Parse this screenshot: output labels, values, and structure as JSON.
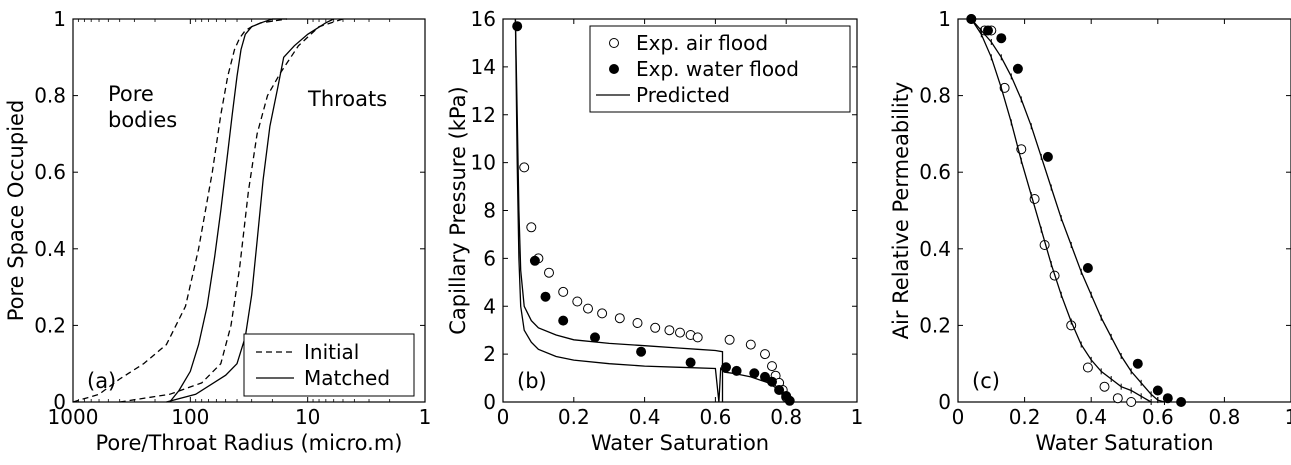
{
  "chart_data": [
    {
      "type": "line",
      "panel_label": "(a)",
      "xlabel": "Pore/Throat Radius (micro.m)",
      "ylabel": "Pore Space Occupied",
      "x_scale": "log",
      "x_reversed": true,
      "xlim": [
        1000,
        1
      ],
      "ylim": [
        0,
        1
      ],
      "xticks": [
        1000,
        100,
        10,
        1
      ],
      "xtick_labels": [
        "1000",
        "100",
        "10",
        "1"
      ],
      "yticks": [
        0,
        0.2,
        0.4,
        0.6,
        0.8,
        1
      ],
      "ytick_labels": [
        "0",
        "0.2",
        "0.4",
        "0.6",
        "0.8",
        "1"
      ],
      "annotations": [
        "Pore",
        "bodies",
        "Throats"
      ],
      "legend": {
        "position": "bottom-right",
        "entries": [
          "Initial",
          "Matched"
        ]
      },
      "grid": false,
      "series": [
        {
          "name": "Initial",
          "style": "dashed",
          "group": "Pore bodies",
          "x": [
            1000,
            600,
            400,
            250,
            160,
            110,
            85,
            65,
            55,
            48,
            42,
            38,
            34,
            30,
            25,
            15
          ],
          "y": [
            0,
            0.02,
            0.06,
            0.1,
            0.15,
            0.25,
            0.4,
            0.6,
            0.75,
            0.85,
            0.92,
            0.95,
            0.97,
            0.98,
            0.99,
            1
          ]
        },
        {
          "name": "Initial",
          "style": "dashed",
          "group": "Throats",
          "x": [
            400,
            150,
            80,
            55,
            45,
            38,
            32,
            27,
            22,
            17,
            12,
            8,
            5
          ],
          "y": [
            0,
            0.02,
            0.05,
            0.1,
            0.2,
            0.35,
            0.55,
            0.7,
            0.8,
            0.86,
            0.93,
            0.98,
            1
          ]
        },
        {
          "name": "Matched",
          "style": "solid",
          "group": "Pore bodies",
          "x": [
            150,
            125,
            100,
            85,
            72,
            62,
            55,
            48,
            44,
            40,
            37,
            34,
            30,
            25,
            20,
            15
          ],
          "y": [
            0,
            0.03,
            0.08,
            0.15,
            0.25,
            0.38,
            0.5,
            0.65,
            0.75,
            0.85,
            0.92,
            0.96,
            0.98,
            0.99,
            1,
            1
          ]
        },
        {
          "name": "Matched",
          "style": "solid",
          "group": "Throats",
          "x": [
            160,
            90,
            50,
            40,
            34,
            30,
            27,
            24,
            21,
            18,
            16,
            13,
            10,
            7,
            6
          ],
          "y": [
            0,
            0.02,
            0.07,
            0.1,
            0.17,
            0.28,
            0.42,
            0.58,
            0.72,
            0.82,
            0.9,
            0.93,
            0.96,
            0.99,
            1
          ]
        }
      ]
    },
    {
      "type": "line",
      "panel_label": "(b)",
      "xlabel": "Water Saturation",
      "ylabel": "Capillary Pressure (kPa)",
      "xlim": [
        0,
        1
      ],
      "ylim": [
        0,
        16
      ],
      "xticks": [
        0,
        0.2,
        0.4,
        0.6,
        0.8,
        1
      ],
      "xtick_labels": [
        "0",
        "0.2",
        "0.4",
        "0.6",
        "0.8",
        "1"
      ],
      "yticks": [
        0,
        2,
        4,
        6,
        8,
        10,
        12,
        14,
        16
      ],
      "ytick_labels": [
        "0",
        "2",
        "4",
        "6",
        "8",
        "10",
        "12",
        "14",
        "16"
      ],
      "legend": {
        "position": "top-right",
        "entries": [
          "Exp. air flood",
          "Exp. water flood",
          "Predicted"
        ]
      },
      "grid": false,
      "series": [
        {
          "name": "Exp. air flood",
          "marker": "open-circle",
          "x": [
            0.06,
            0.08,
            0.1,
            0.13,
            0.17,
            0.21,
            0.24,
            0.28,
            0.33,
            0.38,
            0.43,
            0.47,
            0.5,
            0.53,
            0.55,
            0.64,
            0.7,
            0.74,
            0.76,
            0.77,
            0.78,
            0.79,
            0.8
          ],
          "y": [
            9.8,
            7.3,
            6.0,
            5.4,
            4.6,
            4.2,
            3.9,
            3.7,
            3.5,
            3.3,
            3.1,
            3.0,
            2.9,
            2.8,
            2.7,
            2.6,
            2.4,
            2.0,
            1.5,
            1.1,
            0.8,
            0.5,
            0.2
          ]
        },
        {
          "name": "Exp. water flood",
          "marker": "filled-circle",
          "x": [
            0.04,
            0.09,
            0.12,
            0.17,
            0.26,
            0.39,
            0.53,
            0.63,
            0.66,
            0.71,
            0.74,
            0.76,
            0.78,
            0.8,
            0.81
          ],
          "y": [
            15.7,
            5.9,
            4.4,
            3.4,
            2.7,
            2.1,
            1.65,
            1.45,
            1.3,
            1.2,
            1.05,
            0.85,
            0.5,
            0.25,
            0.05
          ]
        },
        {
          "name": "Predicted",
          "style": "solid",
          "branch": "upper",
          "x": [
            0.035,
            0.04,
            0.045,
            0.05,
            0.06,
            0.08,
            0.1,
            0.15,
            0.2,
            0.3,
            0.4,
            0.5,
            0.55,
            0.6,
            0.62,
            0.62
          ],
          "y": [
            16,
            12,
            8,
            5.5,
            4.0,
            3.4,
            3.1,
            2.8,
            2.6,
            2.45,
            2.35,
            2.25,
            2.2,
            2.15,
            2.1,
            0
          ]
        },
        {
          "name": "Predicted",
          "style": "solid",
          "branch": "lower",
          "x": [
            0.035,
            0.04,
            0.045,
            0.05,
            0.06,
            0.08,
            0.1,
            0.15,
            0.2,
            0.3,
            0.4,
            0.5,
            0.6,
            0.61,
            0.615,
            0.625,
            0.65,
            0.7,
            0.75,
            0.78,
            0.8,
            0.81
          ],
          "y": [
            16,
            10,
            6,
            4.0,
            3.0,
            2.5,
            2.2,
            1.9,
            1.75,
            1.6,
            1.5,
            1.45,
            1.4,
            0,
            1.4,
            1.25,
            1.2,
            1.05,
            0.8,
            0.5,
            0.2,
            0
          ]
        }
      ]
    },
    {
      "type": "line",
      "panel_label": "(c)",
      "xlabel": "Water Saturation",
      "ylabel": "Air Relative Permeability",
      "xlim": [
        0,
        1
      ],
      "ylim": [
        0,
        1
      ],
      "xticks": [
        0,
        0.2,
        0.4,
        0.6,
        0.8,
        1
      ],
      "xtick_labels": [
        "0",
        "0.2",
        "0.4",
        "0.6",
        "0.8",
        "1"
      ],
      "yticks": [
        0,
        0.2,
        0.4,
        0.6,
        0.8,
        1
      ],
      "ytick_labels": [
        "0",
        "0.2",
        "0.4",
        "0.6",
        "0.8",
        "1"
      ],
      "grid": false,
      "series": [
        {
          "name": "Exp. air flood",
          "marker": "open-circle",
          "x": [
            0.04,
            0.08,
            0.1,
            0.14,
            0.19,
            0.23,
            0.26,
            0.29,
            0.34,
            0.39,
            0.44,
            0.48,
            0.52
          ],
          "y": [
            1.0,
            0.97,
            0.97,
            0.82,
            0.66,
            0.53,
            0.41,
            0.33,
            0.2,
            0.09,
            0.04,
            0.01,
            0.0
          ]
        },
        {
          "name": "Exp. water flood",
          "marker": "filled-circle",
          "x": [
            0.04,
            0.09,
            0.13,
            0.18,
            0.27,
            0.39,
            0.54,
            0.6,
            0.63,
            0.67
          ],
          "y": [
            1.0,
            0.97,
            0.95,
            0.87,
            0.64,
            0.35,
            0.1,
            0.03,
            0.01,
            0.0
          ]
        },
        {
          "name": "Predicted",
          "style": "solid",
          "error_bars": true,
          "branch": "inner",
          "x": [
            0.04,
            0.07,
            0.1,
            0.13,
            0.16,
            0.19,
            0.22,
            0.25,
            0.28,
            0.31,
            0.34,
            0.37,
            0.4,
            0.43,
            0.46,
            0.49,
            0.52,
            0.55,
            0.58
          ],
          "y": [
            1.0,
            0.96,
            0.9,
            0.82,
            0.73,
            0.63,
            0.54,
            0.45,
            0.36,
            0.28,
            0.21,
            0.15,
            0.11,
            0.08,
            0.06,
            0.04,
            0.03,
            0.015,
            0.0
          ]
        },
        {
          "name": "Predicted",
          "style": "solid",
          "error_bars": true,
          "branch": "outer",
          "x": [
            0.04,
            0.07,
            0.1,
            0.13,
            0.16,
            0.19,
            0.22,
            0.25,
            0.28,
            0.31,
            0.34,
            0.37,
            0.4,
            0.43,
            0.46,
            0.49,
            0.52,
            0.55,
            0.58,
            0.6,
            0.62
          ],
          "y": [
            1.0,
            0.97,
            0.94,
            0.9,
            0.85,
            0.79,
            0.72,
            0.64,
            0.56,
            0.48,
            0.41,
            0.34,
            0.28,
            0.22,
            0.17,
            0.12,
            0.08,
            0.05,
            0.02,
            0.005,
            0.0
          ]
        }
      ]
    }
  ]
}
